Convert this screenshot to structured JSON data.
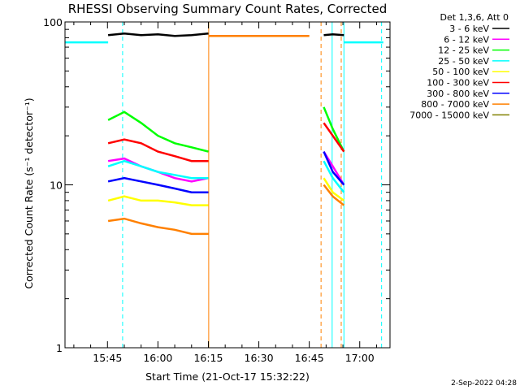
{
  "chart_data": {
    "type": "line",
    "title": "RHESSI Observing Summary Count Rates, Corrected",
    "xlabel": "Start Time (21-Oct-17 15:32:22)",
    "ylabel": "Corrected Count Rate (s⁻¹ detector⁻¹)",
    "yscale": "log",
    "ylim": [
      1,
      100
    ],
    "xlim_minutes_after_1530": [
      2.37,
      99
    ],
    "x_unit": "minutes after 15:30 UT",
    "x_ticks": [
      {
        "label": "15:45",
        "value": 15
      },
      {
        "label": "16:00",
        "value": 30
      },
      {
        "label": "16:15",
        "value": 45
      },
      {
        "label": "16:30",
        "value": 60
      },
      {
        "label": "16:45",
        "value": 75
      },
      {
        "label": "17:00",
        "value": 90
      }
    ],
    "y_ticks": [
      {
        "label": "1",
        "value": 1
      },
      {
        "label": "10",
        "value": 10
      },
      {
        "label": "100",
        "value": 100
      }
    ],
    "legend_title": "Det 1,3,6, Att 0",
    "legend_position": "right",
    "grid": false,
    "series": [
      {
        "name": "3 - 6 keV",
        "color": "#000000",
        "segments": [
          {
            "x": [
              15.2,
              20,
              25,
              30,
              35,
              40,
              45
            ],
            "y": [
              83,
              85,
              83,
              84,
              82,
              83,
              85
            ]
          },
          {
            "x": [
              79.3,
              82,
              85.3
            ],
            "y": [
              83,
              84,
              83
            ]
          }
        ]
      },
      {
        "name": "6 - 12 keV",
        "color": "#ff00ff",
        "segments": [
          {
            "x": [
              15.2,
              20,
              25,
              30,
              35,
              40,
              45
            ],
            "y": [
              14,
              14.5,
              13,
              12,
              11,
              10.5,
              11
            ]
          },
          {
            "x": [
              79.3,
              82,
              85.3
            ],
            "y": [
              16,
              13,
              10
            ]
          }
        ]
      },
      {
        "name": "12 - 25 keV",
        "color": "#00ff00",
        "segments": [
          {
            "x": [
              15.2,
              20,
              25,
              30,
              35,
              40,
              45
            ],
            "y": [
              25,
              28,
              24,
              20,
              18,
              17,
              16
            ]
          },
          {
            "x": [
              79.3,
              82,
              85.3
            ],
            "y": [
              30,
              22,
              16
            ]
          }
        ]
      },
      {
        "name": "25 - 50 keV",
        "color": "#00ffff",
        "segments": [
          {
            "x": [
              2.37,
              9,
              15.2
            ],
            "y": [
              75,
              75,
              75
            ]
          },
          {
            "x": [
              15.2,
              20,
              25,
              30,
              35,
              40,
              45
            ],
            "y": [
              13,
              14,
              13,
              12,
              11.5,
              11,
              11
            ]
          },
          {
            "x": [
              79.3,
              82,
              85.3
            ],
            "y": [
              14,
              11,
              9
            ]
          },
          {
            "x": [
              85.3,
              92,
              97
            ],
            "y": [
              75,
              75,
              75
            ]
          }
        ]
      },
      {
        "name": "50 - 100 keV",
        "color": "#ffff00",
        "segments": [
          {
            "x": [
              15.2,
              20,
              25,
              30,
              35,
              40,
              45
            ],
            "y": [
              8,
              8.5,
              8,
              8,
              7.8,
              7.5,
              7.5
            ]
          },
          {
            "x": [
              79.3,
              82,
              85.3
            ],
            "y": [
              11,
              9,
              8
            ]
          }
        ]
      },
      {
        "name": "100 - 300 keV",
        "color": "#ff0000",
        "segments": [
          {
            "x": [
              15.2,
              20,
              25,
              30,
              35,
              40,
              45
            ],
            "y": [
              18,
              19,
              18,
              16,
              15,
              14,
              14
            ]
          },
          {
            "x": [
              79.3,
              82,
              85.3
            ],
            "y": [
              24,
              20,
              16
            ]
          }
        ]
      },
      {
        "name": "300 - 800 keV",
        "color": "#0000ff",
        "segments": [
          {
            "x": [
              15.2,
              20,
              25,
              30,
              35,
              40,
              45
            ],
            "y": [
              10.5,
              11,
              10.5,
              10,
              9.5,
              9,
              9
            ]
          },
          {
            "x": [
              79.3,
              82,
              85.3
            ],
            "y": [
              16,
              12,
              10
            ]
          }
        ]
      },
      {
        "name": "800 - 7000 keV",
        "color": "#ff8000",
        "segments": [
          {
            "x": [
              15.2,
              20,
              25,
              30,
              35,
              40,
              45
            ],
            "y": [
              6,
              6.2,
              5.8,
              5.5,
              5.3,
              5,
              5
            ]
          },
          {
            "x": [
              45,
              55,
              65,
              75
            ],
            "y": [
              82,
              82,
              82,
              82
            ]
          },
          {
            "x": [
              79.3,
              82,
              85.3
            ],
            "y": [
              10,
              8.5,
              7.5
            ]
          }
        ]
      },
      {
        "name": "7000 - 15000 keV",
        "color": "#808000",
        "segments": []
      }
    ],
    "vertical_markers": [
      {
        "x": 2.37,
        "color": "#00ffff",
        "style": "solid"
      },
      {
        "x": 19.5,
        "color": "#00ffff",
        "style": "dashed"
      },
      {
        "x": 45.1,
        "color": "#ff8000",
        "style": "solid"
      },
      {
        "x": 78.5,
        "color": "#ff8000",
        "style": "dashed"
      },
      {
        "x": 81.8,
        "color": "#00ffff",
        "style": "solid"
      },
      {
        "x": 84.5,
        "color": "#ff8000",
        "style": "dashed"
      },
      {
        "x": 85.3,
        "color": "#00ffff",
        "style": "solid"
      },
      {
        "x": 96.5,
        "color": "#00ffff",
        "style": "dashed"
      }
    ],
    "timestamp": "2-Sep-2022 04:28"
  }
}
